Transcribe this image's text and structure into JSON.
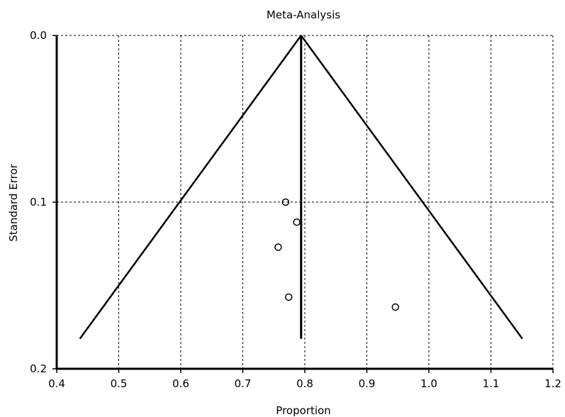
{
  "chart_data": {
    "type": "scatter",
    "title": "Meta-Analysis",
    "xlabel": "Proportion",
    "ylabel": "Standard Error",
    "xlim": [
      0.4,
      1.2
    ],
    "ylim": [
      0.0,
      0.2
    ],
    "y_inverted": true,
    "grid": true,
    "x_ticks": [
      "0.4",
      "0.5",
      "0.6",
      "0.7",
      "0.8",
      "0.9",
      "1.0",
      "1.1",
      "1.2"
    ],
    "y_ticks": [
      "0.0",
      "0.1",
      "0.2"
    ],
    "pooled_estimate": 0.794,
    "funnel_max_se": 0.182,
    "points": [
      {
        "x": 0.769,
        "y": 0.1
      },
      {
        "x": 0.787,
        "y": 0.112
      },
      {
        "x": 0.757,
        "y": 0.127
      },
      {
        "x": 0.774,
        "y": 0.157
      },
      {
        "x": 0.946,
        "y": 0.163
      }
    ]
  }
}
